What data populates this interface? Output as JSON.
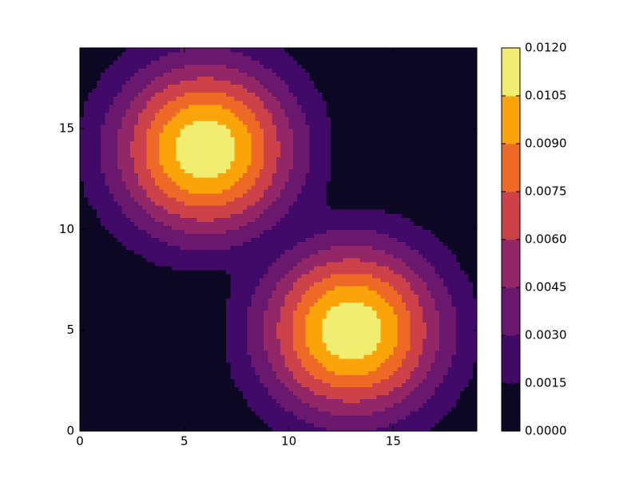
{
  "chart_data": {
    "type": "contour",
    "x": [
      0,
      1,
      2,
      3,
      4,
      5,
      6,
      7,
      8,
      9,
      10,
      11,
      12,
      13,
      14,
      15,
      16,
      17,
      18,
      19
    ],
    "y": [
      0,
      1,
      2,
      3,
      4,
      5,
      6,
      7,
      8,
      9,
      10,
      11,
      12,
      13,
      14,
      15,
      16,
      17,
      18,
      19
    ],
    "z": [
      [
        0,
        0,
        0,
        0,
        0,
        0,
        0,
        0,
        0,
        0.0013,
        0.0018,
        0.0024,
        0.0029,
        0.003,
        0.0029,
        0.0024,
        0.0018,
        0.0013,
        0,
        0
      ],
      [
        0,
        0,
        0,
        0,
        0,
        0,
        0,
        0,
        0.0013,
        0.002,
        0.003,
        0.004,
        0.0047,
        0.005,
        0.0047,
        0.004,
        0.003,
        0.002,
        0.0013,
        0
      ],
      [
        0,
        0,
        0,
        0,
        0,
        0,
        0,
        0.001,
        0.0018,
        0.003,
        0.0045,
        0.0059,
        0.0069,
        0.0073,
        0.0069,
        0.0059,
        0.0045,
        0.003,
        0.0018,
        0.001
      ],
      [
        0,
        0,
        0,
        0,
        0,
        0,
        0,
        0.0013,
        0.0024,
        0.004,
        0.0059,
        0.0078,
        0.0091,
        0.0097,
        0.0091,
        0.0078,
        0.0059,
        0.004,
        0.0024,
        0.0013
      ],
      [
        0,
        0,
        0,
        0,
        0,
        0,
        0,
        0.0015,
        0.0029,
        0.0047,
        0.0069,
        0.0091,
        0.0108,
        0.0114,
        0.0108,
        0.0091,
        0.0069,
        0.0047,
        0.0029,
        0.0015
      ],
      [
        0,
        0,
        0,
        0,
        0,
        0,
        0,
        0.0016,
        0.003,
        0.005,
        0.0073,
        0.0097,
        0.0114,
        0.0121,
        0.0114,
        0.0097,
        0.0073,
        0.005,
        0.003,
        0.0016
      ],
      [
        0,
        0,
        0,
        0,
        0,
        0,
        0,
        0.0015,
        0.0029,
        0.0047,
        0.0069,
        0.0091,
        0.0108,
        0.0114,
        0.0108,
        0.0091,
        0.0069,
        0.0047,
        0.0029,
        0.0015
      ],
      [
        0,
        0,
        0,
        0,
        0,
        0,
        0,
        0.0013,
        0.0024,
        0.004,
        0.0059,
        0.0078,
        0.0091,
        0.0097,
        0.0091,
        0.0078,
        0.0059,
        0.004,
        0.0024,
        0.0013
      ],
      [
        0,
        0,
        0,
        0.001,
        0.0013,
        0.0015,
        0.0016,
        0.0015,
        0.0018,
        0.003,
        0.0045,
        0.0059,
        0.0069,
        0.0073,
        0.0069,
        0.0059,
        0.0045,
        0.003,
        0.0018,
        0.001
      ],
      [
        0,
        0,
        0.0013,
        0.0018,
        0.0024,
        0.0029,
        0.003,
        0.0029,
        0.0024,
        0.002,
        0.003,
        0.004,
        0.0047,
        0.005,
        0.0047,
        0.004,
        0.003,
        0.002,
        0.0013,
        0
      ],
      [
        0,
        0.0013,
        0.002,
        0.003,
        0.004,
        0.0047,
        0.005,
        0.0047,
        0.004,
        0.003,
        0.002,
        0.0024,
        0.0029,
        0.003,
        0.0029,
        0.0024,
        0.0018,
        0.0013,
        0,
        0
      ],
      [
        0.001,
        0.0018,
        0.003,
        0.0045,
        0.0059,
        0.0069,
        0.0073,
        0.0069,
        0.0059,
        0.0045,
        0.003,
        0.0018,
        0.0015,
        0.0016,
        0.0015,
        0.0013,
        0.001,
        0,
        0,
        0
      ],
      [
        0.0013,
        0.0024,
        0.004,
        0.0059,
        0.0078,
        0.0091,
        0.0097,
        0.0091,
        0.0078,
        0.0059,
        0.004,
        0.0024,
        0.0013,
        0,
        0,
        0,
        0,
        0,
        0,
        0
      ],
      [
        0.0015,
        0.0029,
        0.0047,
        0.0069,
        0.0091,
        0.0108,
        0.0114,
        0.0108,
        0.0091,
        0.0069,
        0.0047,
        0.0029,
        0.0015,
        0,
        0,
        0,
        0,
        0,
        0,
        0
      ],
      [
        0.0016,
        0.003,
        0.005,
        0.0073,
        0.0097,
        0.0114,
        0.0121,
        0.0114,
        0.0097,
        0.0073,
        0.005,
        0.003,
        0.0016,
        0,
        0,
        0,
        0,
        0,
        0,
        0
      ],
      [
        0.0015,
        0.0029,
        0.0047,
        0.0069,
        0.0091,
        0.0108,
        0.0114,
        0.0108,
        0.0091,
        0.0069,
        0.0047,
        0.0029,
        0.0015,
        0,
        0,
        0,
        0,
        0,
        0,
        0
      ],
      [
        0.0013,
        0.0024,
        0.004,
        0.0059,
        0.0078,
        0.0091,
        0.0097,
        0.0091,
        0.0078,
        0.0059,
        0.004,
        0.0024,
        0.0013,
        0,
        0,
        0,
        0,
        0,
        0,
        0
      ],
      [
        0.001,
        0.0018,
        0.003,
        0.0045,
        0.0059,
        0.0069,
        0.0073,
        0.0069,
        0.0059,
        0.0045,
        0.003,
        0.0018,
        0.001,
        0,
        0,
        0,
        0,
        0,
        0,
        0
      ],
      [
        0,
        0.0013,
        0.002,
        0.003,
        0.004,
        0.0047,
        0.005,
        0.0047,
        0.004,
        0.003,
        0.002,
        0.0013,
        0,
        0,
        0,
        0,
        0,
        0,
        0,
        0
      ],
      [
        0,
        0,
        0.0013,
        0.0018,
        0.0024,
        0.0029,
        0.003,
        0.0029,
        0.0024,
        0.0018,
        0.0013,
        0,
        0,
        0,
        0,
        0,
        0,
        0,
        0,
        0
      ]
    ],
    "levels": [
      {
        "value": 0,
        "label": "0.0000"
      },
      {
        "value": 0.0015,
        "label": "0.0015"
      },
      {
        "value": 0.003,
        "label": "0.0030"
      },
      {
        "value": 0.0045,
        "label": "0.0045"
      },
      {
        "value": 0.006,
        "label": "0.0060"
      },
      {
        "value": 0.0075,
        "label": "0.0075"
      },
      {
        "value": 0.009,
        "label": "0.0090"
      },
      {
        "value": 0.0105,
        "label": "0.0105"
      },
      {
        "value": 0.012,
        "label": "0.0120"
      }
    ],
    "colors": [
      "#0c0722",
      "#420a68",
      "#6a176e",
      "#932667",
      "#cc4248",
      "#ed6925",
      "#fba40a",
      "#f1ed71"
    ],
    "xlim": [
      0,
      19
    ],
    "ylim": [
      0,
      19
    ],
    "xticks": [
      0,
      5,
      10,
      15
    ],
    "yticks": [
      0,
      5,
      10,
      15
    ]
  }
}
